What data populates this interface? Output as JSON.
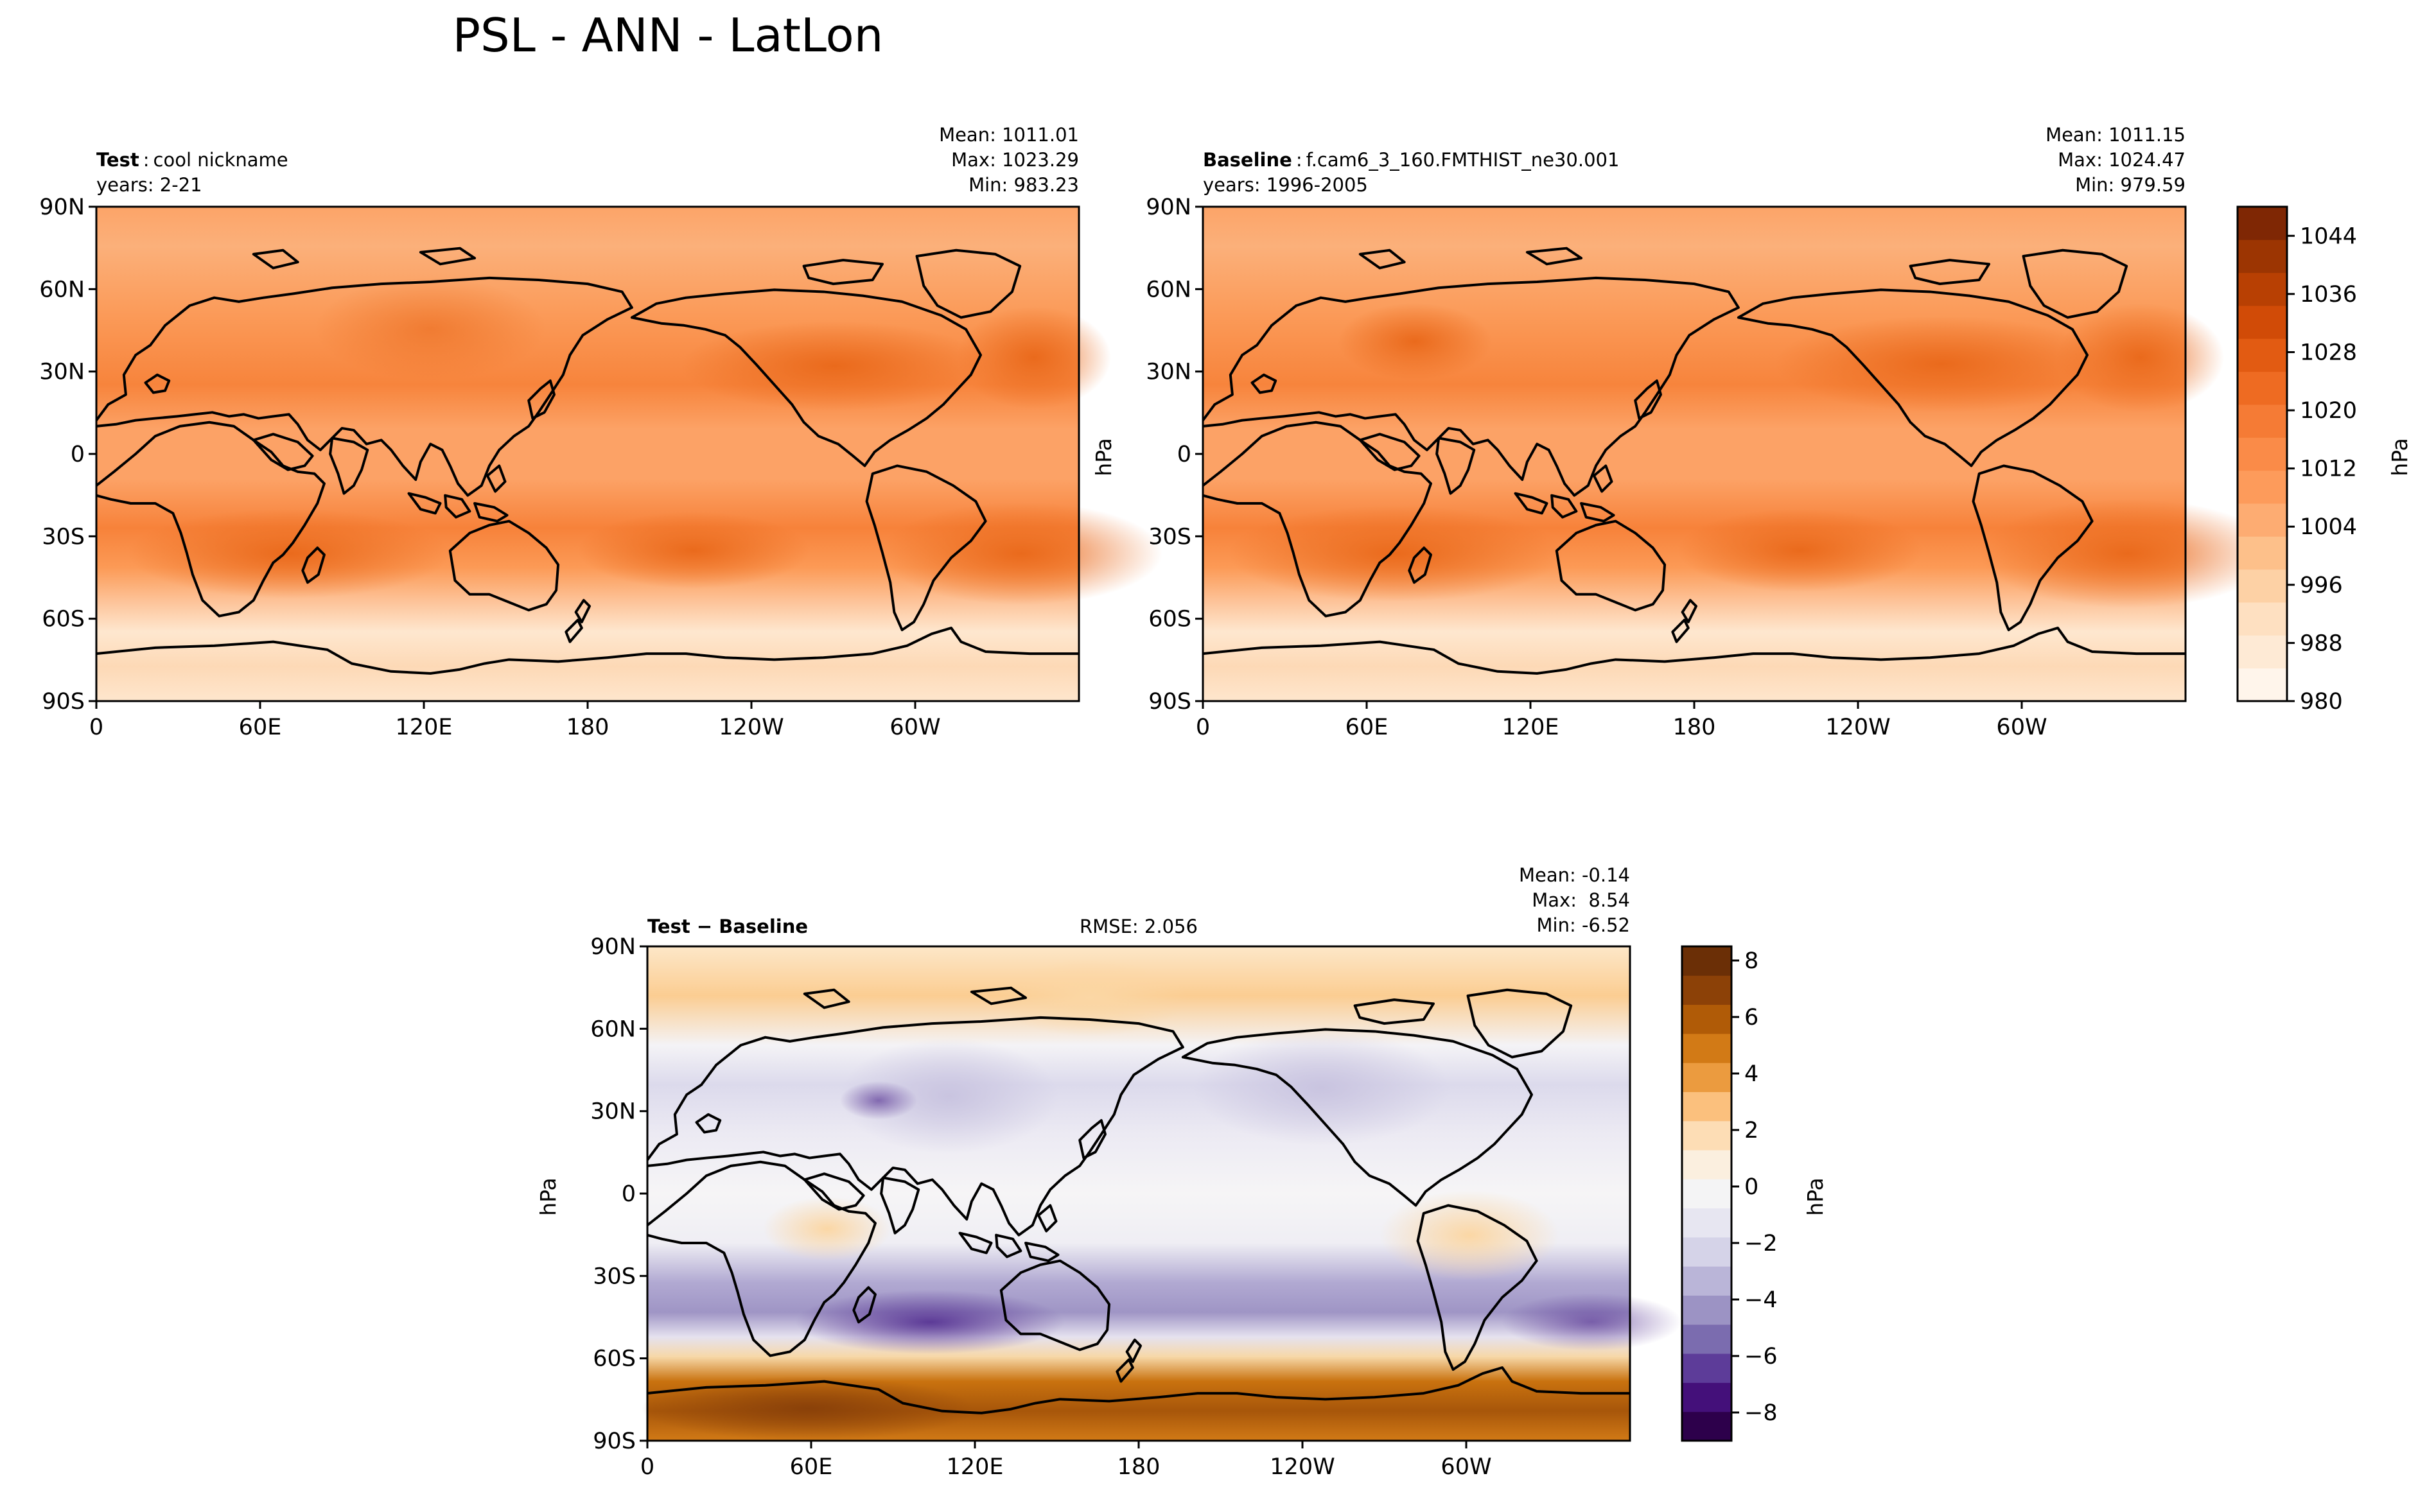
{
  "figure": {
    "title": "PSL - ANN - LatLon"
  },
  "panels": {
    "test": {
      "label_bold": "Test",
      "label_text": "cool nickname",
      "years": "years: 2-21",
      "stats": [
        "Mean: 1011.01",
        "Max: 1023.29",
        "Min: 983.23"
      ]
    },
    "baseline": {
      "label_bold": "Baseline",
      "label_text": "f.cam6_3_160.FMTHIST_ne30.001",
      "years": "years: 1996-2005",
      "stats": [
        "Mean: 1011.15",
        "Max: 1024.47",
        "Min: 979.59"
      ],
      "ylabel": "hPa"
    },
    "diff": {
      "label_bold": "Test − Baseline",
      "rmse": "RMSE: 2.056",
      "stats": [
        "Mean: -0.14",
        "Max:  8.54",
        "Min: -6.52"
      ],
      "ylabel": "hPa"
    }
  },
  "axes": {
    "lat_ticks": [
      "90N",
      "60N",
      "30N",
      "0",
      "30S",
      "60S",
      "90S"
    ],
    "lon_ticks": [
      "0",
      "60E",
      "120E",
      "180",
      "120W",
      "60W"
    ]
  },
  "colorbars": {
    "main": {
      "label": "hPa",
      "min": 980,
      "max": 1048,
      "ticks": [
        "980",
        "988",
        "996",
        "1004",
        "1012",
        "1020",
        "1028",
        "1036",
        "1044"
      ],
      "colors": [
        "#fff5eb",
        "#feead5",
        "#fee0c1",
        "#fdd1a5",
        "#fdc08a",
        "#fdac72",
        "#fd9b5b",
        "#fa8b48",
        "#f57b35",
        "#ee6b22",
        "#e25b12",
        "#d14b07",
        "#b84003",
        "#9c3502",
        "#7f2704"
      ]
    },
    "diff": {
      "label": "hPa",
      "min": -9,
      "max": 8.5,
      "ticks": [
        "−8",
        "−6",
        "−4",
        "−2",
        "0",
        "2",
        "4",
        "6",
        "8"
      ],
      "colors": [
        "#2d004b",
        "#44107a",
        "#5d3c99",
        "#7b6caf",
        "#9c93c4",
        "#bab5d8",
        "#d5d3e8",
        "#e7e6f1",
        "#f4f4f5",
        "#fbefdf",
        "#fdddb5",
        "#fbc07d",
        "#eb9b3f",
        "#d27a16",
        "#b05b07",
        "#8c4107",
        "#6b2f06"
      ]
    }
  },
  "map_layer": {
    "type": "filled-contour",
    "variable": "PSL"
  }
}
